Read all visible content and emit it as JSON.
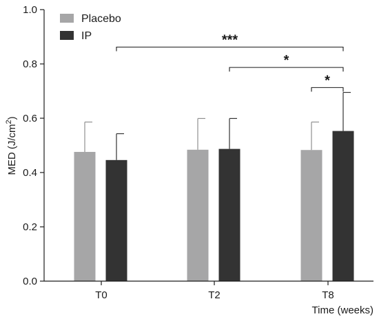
{
  "chart_data": {
    "type": "bar",
    "categories": [
      "T0",
      "T2",
      "T8"
    ],
    "series": [
      {
        "name": "Placebo",
        "color": "#a6a6a7",
        "values": [
          0.476,
          0.484,
          0.483
        ],
        "errors": [
          0.11,
          0.115,
          0.103
        ]
      },
      {
        "name": "IP",
        "color": "#333333",
        "values": [
          0.446,
          0.487,
          0.553
        ],
        "errors": [
          0.097,
          0.112,
          0.142
        ]
      }
    ],
    "xlabel": "Time (weeks)",
    "ylabel": {
      "base": "MED (J/cm",
      "superscript": "2",
      "suffix": ")"
    },
    "ylim": [
      0,
      1.0
    ],
    "yticks": [
      "0.0",
      "0.2",
      "0.4",
      "0.6",
      "0.8",
      "1.0"
    ],
    "legend_position": "top-left",
    "grid": false,
    "significance": [
      {
        "label": "***",
        "from": "T0 IP",
        "to": "T8 IP",
        "y": 0.862
      },
      {
        "label": "*",
        "from": "T2 IP",
        "to": "T8 IP",
        "y": 0.787
      },
      {
        "label": "*",
        "from": "T8 Placebo",
        "to": "T8 IP",
        "y": 0.713
      }
    ]
  }
}
